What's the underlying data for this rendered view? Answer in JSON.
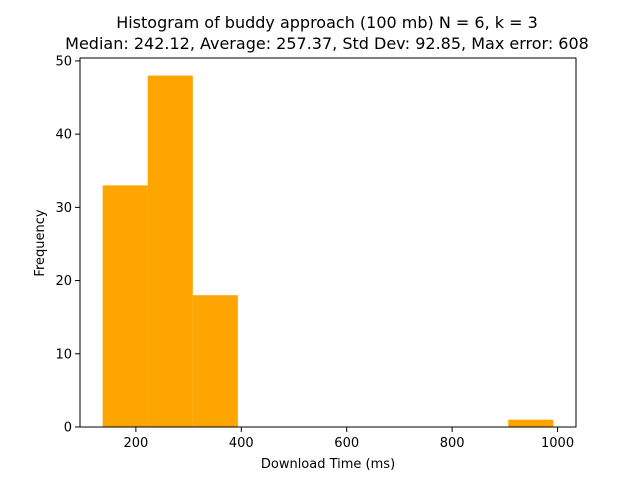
{
  "chart_data": {
    "type": "bar",
    "subtype": "histogram",
    "title": "Histogram of buddy approach (100 mb) N = 6, k = 3",
    "subtitle": "Median: 242.12, Average: 257.37, Std Dev: 92.85, Max error: 608",
    "xlabel": "Download Time (ms)",
    "ylabel": "Frequency",
    "bar_color": "#ffa500",
    "bins": [
      {
        "start": 137,
        "end": 222.5,
        "count": 33
      },
      {
        "start": 222.5,
        "end": 308,
        "count": 48
      },
      {
        "start": 308,
        "end": 393.5,
        "count": 18
      },
      {
        "start": 393.5,
        "end": 479,
        "count": 0
      },
      {
        "start": 479,
        "end": 564.5,
        "count": 0
      },
      {
        "start": 564.5,
        "end": 650,
        "count": 0
      },
      {
        "start": 650,
        "end": 735.5,
        "count": 0
      },
      {
        "start": 735.5,
        "end": 821,
        "count": 0
      },
      {
        "start": 821,
        "end": 906.5,
        "count": 0
      },
      {
        "start": 906.5,
        "end": 992,
        "count": 1
      }
    ],
    "xlim": [
      94,
      1035
    ],
    "ylim": [
      0,
      50.4
    ],
    "xticks": [
      200,
      400,
      600,
      800,
      1000
    ],
    "yticks": [
      0,
      10,
      20,
      30,
      40,
      50
    ],
    "grid": false,
    "legend": "none"
  }
}
